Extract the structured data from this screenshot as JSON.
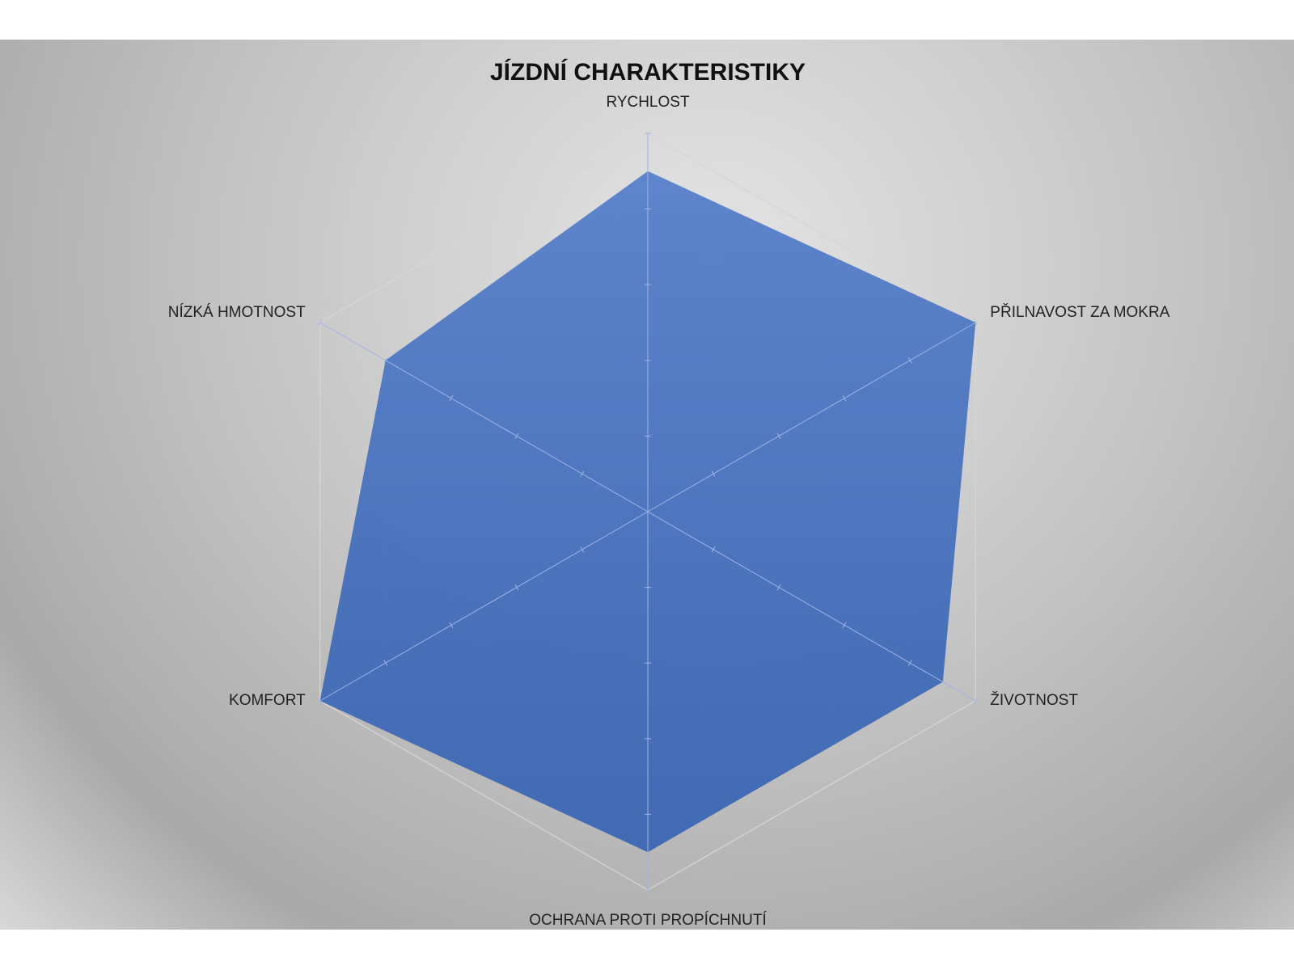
{
  "chart_data": {
    "type": "radar",
    "title": "JÍZDNÍ CHARAKTERISTIKY",
    "categories": [
      "RYCHLOST",
      "PŘILNAVOST ZA MOKRA",
      "ŽIVOTNOST",
      "OCHRANA PROTI PROPÍCHNUTÍ",
      "KOMFORT",
      "NÍZKÁ HMOTNOST"
    ],
    "values": [
      4.5,
      5,
      4.5,
      4.5,
      5,
      4
    ],
    "color": "#4472c4",
    "rlim": [
      0,
      5
    ],
    "rticks": [
      1,
      2,
      3,
      4,
      5
    ],
    "grid": true
  }
}
